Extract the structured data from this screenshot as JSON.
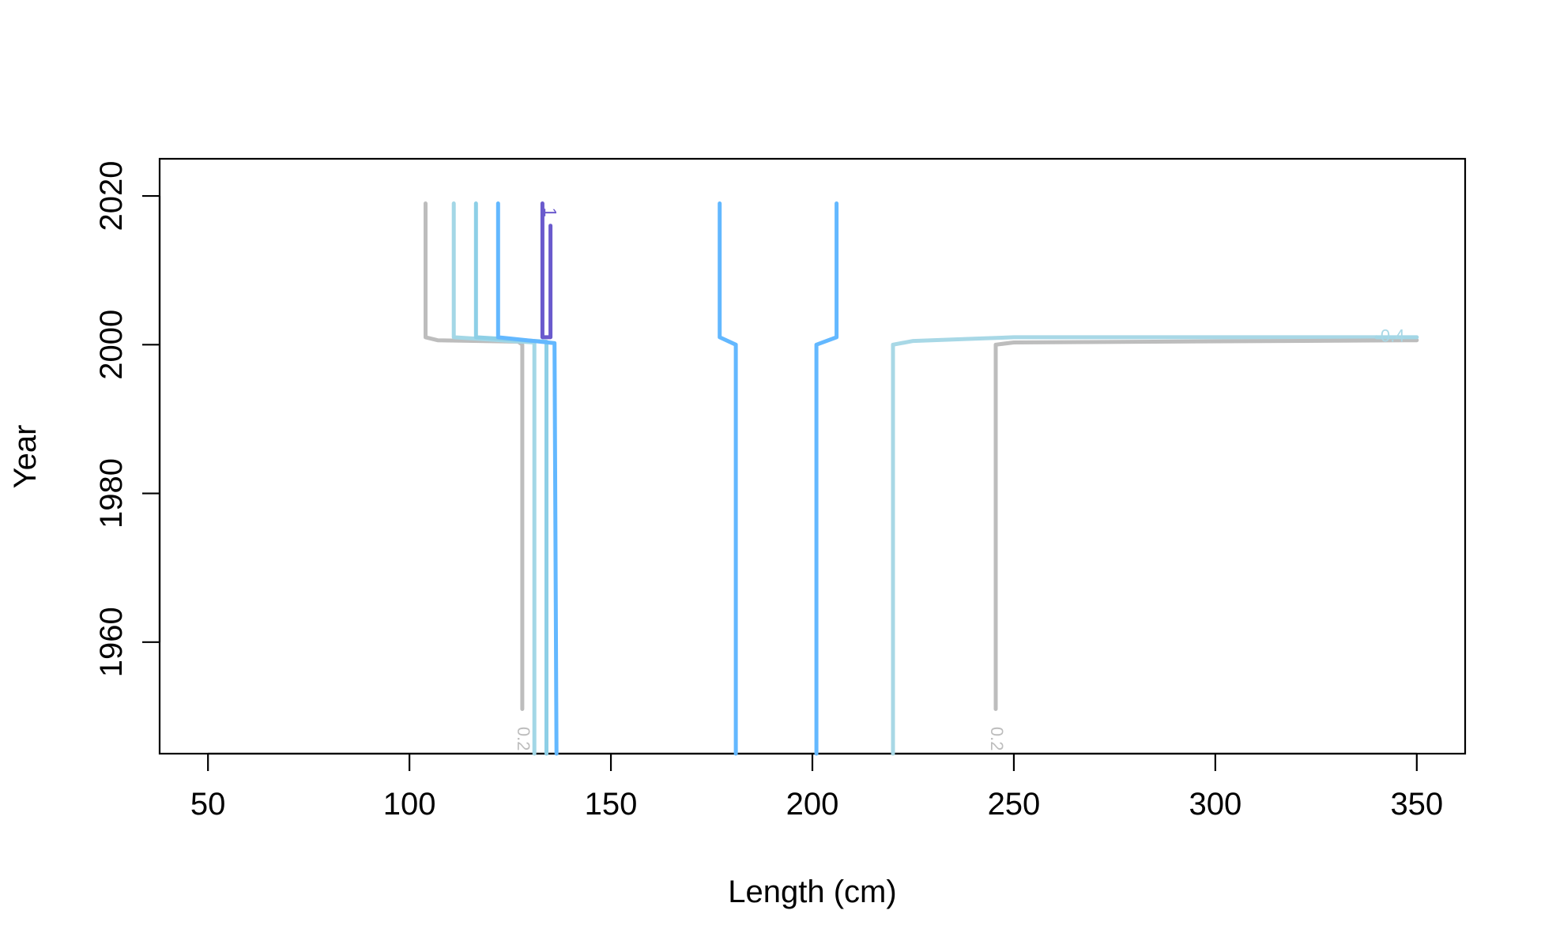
{
  "chart_data": {
    "type": "line",
    "title": "",
    "xlabel": "Length (cm)",
    "ylabel": "Year",
    "xlim": [
      38,
      362
    ],
    "ylim": [
      1945,
      2025
    ],
    "xticks": [
      "50",
      "100",
      "150",
      "200",
      "250",
      "300",
      "350"
    ],
    "yticks": [
      "1960",
      "1980",
      "2000",
      "2020"
    ],
    "grid": false,
    "legend": "none",
    "series": [
      {
        "color": "#bdbdbd",
        "points": [
          [
            104,
            2019
          ],
          [
            104,
            2001
          ],
          [
            107,
            2000.6
          ],
          [
            127,
            2000.4
          ],
          [
            128,
            2000
          ],
          [
            128,
            1951
          ]
        ]
      },
      {
        "color": "#a3d7e6",
        "points": [
          [
            111,
            2019
          ],
          [
            111,
            2001
          ],
          [
            131,
            2000.3
          ],
          [
            131,
            1945
          ]
        ]
      },
      {
        "color": "#8dcfe6",
        "points": [
          [
            116.5,
            2019
          ],
          [
            116.5,
            2001
          ],
          [
            134,
            2000.4
          ],
          [
            134,
            1945
          ]
        ]
      },
      {
        "color": "#63b8ff",
        "points": [
          [
            122,
            2019
          ],
          [
            122,
            2001
          ],
          [
            136,
            2000.2
          ],
          [
            136.5,
            1945
          ]
        ]
      },
      {
        "color": "#6a5acd",
        "points": [
          [
            133,
            2019
          ],
          [
            133,
            2001
          ],
          [
            135,
            2001
          ],
          [
            135,
            2016
          ]
        ]
      },
      {
        "color": "#63b8ff",
        "points": [
          [
            177,
            2019
          ],
          [
            177,
            2001
          ],
          [
            181,
            2000
          ],
          [
            181,
            1945
          ]
        ]
      },
      {
        "color": "#63b8ff",
        "points": [
          [
            206,
            2019
          ],
          [
            206,
            2001
          ],
          [
            201,
            2000
          ],
          [
            201,
            1945
          ]
        ]
      },
      {
        "color": "#a8d8e6",
        "points": [
          [
            220,
            1945
          ],
          [
            220,
            2000
          ],
          [
            225,
            2000.5
          ],
          [
            240,
            2000.8
          ],
          [
            250,
            2001
          ],
          [
            340,
            2001
          ]
        ]
      },
      {
        "color": "#bdbdbd",
        "points": [
          [
            245.5,
            1951
          ],
          [
            245.5,
            2000
          ],
          [
            250,
            2000.3
          ],
          [
            350,
            2000.6
          ]
        ]
      },
      {
        "color": "#a3d7e6",
        "points": [
          [
            340,
            2001
          ],
          [
            350,
            2001
          ]
        ]
      }
    ],
    "contour_labels": [
      {
        "text": "0.2",
        "x": 128,
        "y": 1947,
        "color": "#bdbdbd",
        "rotate": 90
      },
      {
        "text": "0.2",
        "x": 245.5,
        "y": 1947,
        "color": "#bdbdbd",
        "rotate": 90
      },
      {
        "text": "0.4",
        "x": 344,
        "y": 2001,
        "color": "#a8d8e6",
        "rotate": 0
      },
      {
        "text": "1",
        "x": 134.6,
        "y": 2017.8,
        "color": "#6a5acd",
        "rotate": 90
      }
    ]
  }
}
